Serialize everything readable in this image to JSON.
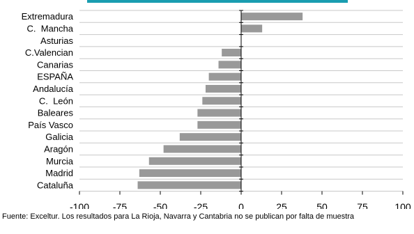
{
  "chart_data": {
    "type": "bar",
    "orientation": "horizontal",
    "categories": [
      "Extremadura",
      "C.  Mancha",
      "Asturias",
      "C.Valencian",
      "Canarias",
      "ESPAÑA",
      "Andalucía",
      "C.  León",
      "Baleares",
      "País Vasco",
      "Galicia",
      "Aragón",
      "Murcia",
      "Madrid",
      "Cataluña"
    ],
    "values": [
      38,
      13,
      0,
      -12,
      -14,
      -20,
      -22,
      -24,
      -27,
      -27,
      -38,
      -48,
      -57,
      -63,
      -64
    ],
    "xlim": [
      -100,
      100
    ],
    "xticks": [
      -100,
      -75,
      -50,
      -25,
      0,
      25,
      50,
      75,
      100
    ],
    "grid": true,
    "bar_color": "#999999",
    "accent_color": "#1a9db0"
  },
  "source_note": "Fuente: Exceltur. Los resultados para La Rioja, Navarra y Cantabria no se publican por falta de muestra"
}
